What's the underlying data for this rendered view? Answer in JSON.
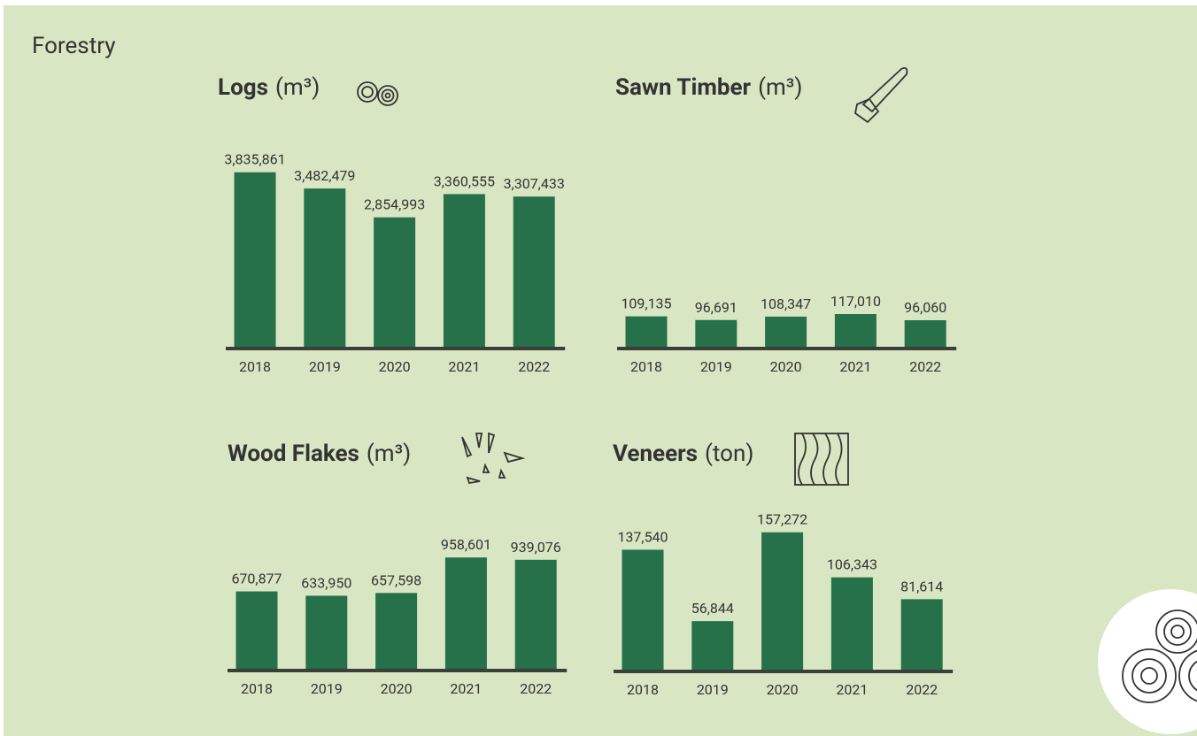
{
  "title": "Forestry",
  "chart_data": [
    {
      "type": "bar",
      "title": "Logs",
      "unit": "(m³)",
      "categories": [
        "2018",
        "2019",
        "2020",
        "2021",
        "2022"
      ],
      "values": [
        3835861,
        3482479,
        2854993,
        3360555,
        3307433
      ],
      "value_labels": [
        "3,835,861",
        "3,482,479",
        "2,854,993",
        "3,360,555",
        "3,307,433"
      ],
      "color": "#26704a",
      "ylim": [
        0,
        3850000
      ]
    },
    {
      "type": "bar",
      "title": "Sawn Timber",
      "unit": "(m³)",
      "categories": [
        "2018",
        "2019",
        "2020",
        "2021",
        "2022"
      ],
      "values": [
        109135,
        96691,
        108347,
        117010,
        96060
      ],
      "value_labels": [
        "109,135",
        "96,691",
        "108,347",
        "117,010",
        "96,060"
      ],
      "color": "#26704a",
      "ylim": [
        0,
        600000
      ]
    },
    {
      "type": "bar",
      "title": "Wood Flakes",
      "unit": "(m³)",
      "categories": [
        "2018",
        "2019",
        "2020",
        "2021",
        "2022"
      ],
      "values": [
        670877,
        633950,
        657598,
        958601,
        939076
      ],
      "value_labels": [
        "670,877",
        "633,950",
        "657,598",
        "958,601",
        "939,076"
      ],
      "color": "#26704a",
      "ylim": [
        0,
        1500000
      ]
    },
    {
      "type": "bar",
      "title": "Veneers",
      "unit": "(ton)",
      "categories": [
        "2018",
        "2019",
        "2020",
        "2021",
        "2022"
      ],
      "values": [
        137540,
        56844,
        157272,
        106343,
        81614
      ],
      "value_labels": [
        "137,540",
        "56,844",
        "157,272",
        "106,343",
        "81,614"
      ],
      "color": "#26704a",
      "ylim": [
        0,
        200000
      ]
    }
  ]
}
